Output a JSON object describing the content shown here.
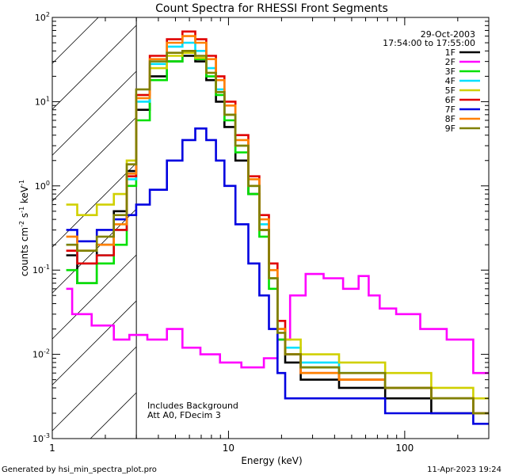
{
  "chart_data": {
    "type": "line",
    "title": "Count Spectra for RHESSI Front Segments",
    "xlabel": "Energy (keV)",
    "ylabel": "counts cm^-2 s^-1 keV^-1",
    "xscale": "log",
    "yscale": "log",
    "xlim": [
      1.0,
      300.0
    ],
    "ylim": [
      0.001,
      100.0
    ],
    "x_tick_labels": [
      {
        "value": 1,
        "label": "1"
      },
      {
        "value": 10,
        "label": "10"
      },
      {
        "value": 100,
        "label": "100"
      }
    ],
    "y_tick_labels": [
      {
        "value": 100,
        "base": "10",
        "exp": "2"
      },
      {
        "value": 10,
        "base": "10",
        "exp": "1"
      },
      {
        "value": 1,
        "base": "10",
        "exp": "0"
      },
      {
        "value": 0.1,
        "base": "10",
        "exp": "-1"
      },
      {
        "value": 0.01,
        "base": "10",
        "exp": "-2"
      },
      {
        "value": 0.001,
        "base": "10",
        "exp": "-3"
      }
    ],
    "shaded_region": {
      "xmin": 1.0,
      "xmax": 3.0,
      "pattern": "diagonal hatch"
    },
    "date": "29-Oct-2003",
    "time_range": "17:54:00 to 17:55:00",
    "annotations": [
      "Includes Background",
      "Att A0, FDecim 3"
    ],
    "series": [
      {
        "name": "1F",
        "color": "#000000",
        "points": [
          [
            1.2,
            0.15
          ],
          [
            1.6,
            0.07
          ],
          [
            2.0,
            0.2
          ],
          [
            2.5,
            0.5
          ],
          [
            2.8,
            1.5
          ],
          [
            3.2,
            8
          ],
          [
            4,
            20
          ],
          [
            5,
            30
          ],
          [
            6,
            35
          ],
          [
            7,
            30
          ],
          [
            8,
            18
          ],
          [
            9,
            10
          ],
          [
            10,
            5
          ],
          [
            12,
            2
          ],
          [
            14,
            0.8
          ],
          [
            16,
            0.3
          ],
          [
            18,
            0.08
          ],
          [
            20,
            0.02
          ],
          [
            22,
            0.008
          ],
          [
            30,
            0.005
          ],
          [
            60,
            0.004
          ],
          [
            100,
            0.003
          ],
          [
            200,
            0.002
          ],
          [
            300,
            0.002
          ]
        ]
      },
      {
        "name": "2F",
        "color": "#ff00ff",
        "points": [
          [
            1.2,
            0.06
          ],
          [
            1.4,
            0.03
          ],
          [
            2.0,
            0.022
          ],
          [
            2.5,
            0.015
          ],
          [
            3.0,
            0.017
          ],
          [
            4,
            0.015
          ],
          [
            5,
            0.02
          ],
          [
            6,
            0.012
          ],
          [
            8,
            0.01
          ],
          [
            10,
            0.008
          ],
          [
            14,
            0.007
          ],
          [
            18,
            0.009
          ],
          [
            20,
            0.015
          ],
          [
            25,
            0.05
          ],
          [
            30,
            0.09
          ],
          [
            40,
            0.08
          ],
          [
            50,
            0.06
          ],
          [
            60,
            0.085
          ],
          [
            65,
            0.05
          ],
          [
            80,
            0.035
          ],
          [
            100,
            0.03
          ],
          [
            150,
            0.02
          ],
          [
            200,
            0.015
          ],
          [
            300,
            0.006
          ]
        ]
      },
      {
        "name": "3F",
        "color": "#00e000",
        "points": [
          [
            1.2,
            0.1
          ],
          [
            1.6,
            0.07
          ],
          [
            2.0,
            0.12
          ],
          [
            2.5,
            0.2
          ],
          [
            2.8,
            1.0
          ],
          [
            3.2,
            6
          ],
          [
            4,
            18
          ],
          [
            5,
            30
          ],
          [
            6,
            40
          ],
          [
            7,
            32
          ],
          [
            8,
            20
          ],
          [
            9,
            12
          ],
          [
            10,
            6
          ],
          [
            12,
            2.5
          ],
          [
            14,
            0.8
          ],
          [
            16,
            0.25
          ],
          [
            18,
            0.06
          ],
          [
            20,
            0.015
          ],
          [
            22,
            0.01
          ],
          [
            30,
            0.007
          ],
          [
            60,
            0.005
          ],
          [
            100,
            0.004
          ],
          [
            200,
            0.003
          ],
          [
            300,
            0.002
          ]
        ]
      },
      {
        "name": "4F",
        "color": "#00e0ff",
        "points": [
          [
            1.2,
            0.2
          ],
          [
            1.6,
            0.12
          ],
          [
            2.0,
            0.15
          ],
          [
            2.5,
            0.3
          ],
          [
            2.8,
            1.2
          ],
          [
            3.2,
            10
          ],
          [
            4,
            28
          ],
          [
            5,
            45
          ],
          [
            6,
            50
          ],
          [
            7,
            40
          ],
          [
            8,
            25
          ],
          [
            9,
            14
          ],
          [
            10,
            7
          ],
          [
            12,
            3
          ],
          [
            14,
            1.0
          ],
          [
            16,
            0.35
          ],
          [
            18,
            0.08
          ],
          [
            20,
            0.02
          ],
          [
            22,
            0.012
          ],
          [
            30,
            0.008
          ],
          [
            60,
            0.006
          ],
          [
            100,
            0.004
          ],
          [
            200,
            0.003
          ],
          [
            300,
            0.002
          ]
        ]
      },
      {
        "name": "5F",
        "color": "#d0d000",
        "points": [
          [
            1.2,
            0.6
          ],
          [
            1.6,
            0.45
          ],
          [
            2.0,
            0.6
          ],
          [
            2.5,
            0.8
          ],
          [
            2.8,
            2.0
          ],
          [
            3.2,
            12
          ],
          [
            4,
            25
          ],
          [
            5,
            35
          ],
          [
            6,
            38
          ],
          [
            7,
            33
          ],
          [
            8,
            22
          ],
          [
            9,
            13
          ],
          [
            10,
            7
          ],
          [
            12,
            3
          ],
          [
            14,
            1.0
          ],
          [
            16,
            0.3
          ],
          [
            18,
            0.08
          ],
          [
            20,
            0.02
          ],
          [
            22,
            0.015
          ],
          [
            30,
            0.01
          ],
          [
            60,
            0.008
          ],
          [
            100,
            0.006
          ],
          [
            200,
            0.004
          ],
          [
            300,
            0.003
          ]
        ]
      },
      {
        "name": "6F",
        "color": "#e00000",
        "points": [
          [
            1.2,
            0.17
          ],
          [
            1.6,
            0.12
          ],
          [
            2.0,
            0.15
          ],
          [
            2.5,
            0.3
          ],
          [
            2.8,
            1.3
          ],
          [
            3.2,
            12
          ],
          [
            4,
            35
          ],
          [
            5,
            55
          ],
          [
            6,
            68
          ],
          [
            7,
            55
          ],
          [
            8,
            35
          ],
          [
            9,
            20
          ],
          [
            10,
            10
          ],
          [
            12,
            4
          ],
          [
            14,
            1.3
          ],
          [
            16,
            0.45
          ],
          [
            18,
            0.12
          ],
          [
            20,
            0.025
          ],
          [
            22,
            0.01
          ],
          [
            30,
            0.006
          ],
          [
            60,
            0.005
          ],
          [
            100,
            0.004
          ],
          [
            200,
            0.003
          ],
          [
            300,
            0.002
          ]
        ]
      },
      {
        "name": "7F",
        "color": "#0000e0",
        "points": [
          [
            1.2,
            0.3
          ],
          [
            1.6,
            0.22
          ],
          [
            2.0,
            0.3
          ],
          [
            2.5,
            0.4
          ],
          [
            2.8,
            0.45
          ],
          [
            3.2,
            0.6
          ],
          [
            4,
            0.9
          ],
          [
            5,
            2
          ],
          [
            6,
            3.5
          ],
          [
            7,
            4.8
          ],
          [
            8,
            3.5
          ],
          [
            9,
            2
          ],
          [
            10,
            1
          ],
          [
            12,
            0.35
          ],
          [
            14,
            0.12
          ],
          [
            16,
            0.05
          ],
          [
            18,
            0.02
          ],
          [
            20,
            0.006
          ],
          [
            22,
            0.003
          ],
          [
            30,
            0.003
          ],
          [
            60,
            0.003
          ],
          [
            100,
            0.002
          ],
          [
            200,
            0.002
          ],
          [
            300,
            0.0015
          ]
        ]
      },
      {
        "name": "8F",
        "color": "#ff8000",
        "points": [
          [
            1.2,
            0.25
          ],
          [
            1.6,
            0.17
          ],
          [
            2.0,
            0.2
          ],
          [
            2.5,
            0.35
          ],
          [
            2.8,
            1.4
          ],
          [
            3.2,
            11
          ],
          [
            4,
            32
          ],
          [
            5,
            50
          ],
          [
            6,
            60
          ],
          [
            7,
            50
          ],
          [
            8,
            32
          ],
          [
            9,
            18
          ],
          [
            10,
            9
          ],
          [
            12,
            3.5
          ],
          [
            14,
            1.2
          ],
          [
            16,
            0.4
          ],
          [
            18,
            0.1
          ],
          [
            20,
            0.02
          ],
          [
            22,
            0.01
          ],
          [
            30,
            0.006
          ],
          [
            60,
            0.005
          ],
          [
            100,
            0.004
          ],
          [
            200,
            0.003
          ],
          [
            300,
            0.002
          ]
        ]
      },
      {
        "name": "9F",
        "color": "#808000",
        "points": [
          [
            1.2,
            0.2
          ],
          [
            1.6,
            0.17
          ],
          [
            2.0,
            0.25
          ],
          [
            2.5,
            0.45
          ],
          [
            2.8,
            1.8
          ],
          [
            3.2,
            14
          ],
          [
            4,
            30
          ],
          [
            5,
            38
          ],
          [
            6,
            40
          ],
          [
            7,
            35
          ],
          [
            8,
            22
          ],
          [
            9,
            13
          ],
          [
            10,
            7
          ],
          [
            12,
            3
          ],
          [
            14,
            1.0
          ],
          [
            16,
            0.3
          ],
          [
            18,
            0.08
          ],
          [
            20,
            0.018
          ],
          [
            22,
            0.01
          ],
          [
            30,
            0.007
          ],
          [
            60,
            0.006
          ],
          [
            100,
            0.004
          ],
          [
            200,
            0.003
          ],
          [
            300,
            0.002
          ]
        ]
      }
    ]
  },
  "footer": {
    "generated_by": "Generated by hsi_min_spectra_plot.pro",
    "timestamp": "11-Apr-2023 19:24"
  }
}
